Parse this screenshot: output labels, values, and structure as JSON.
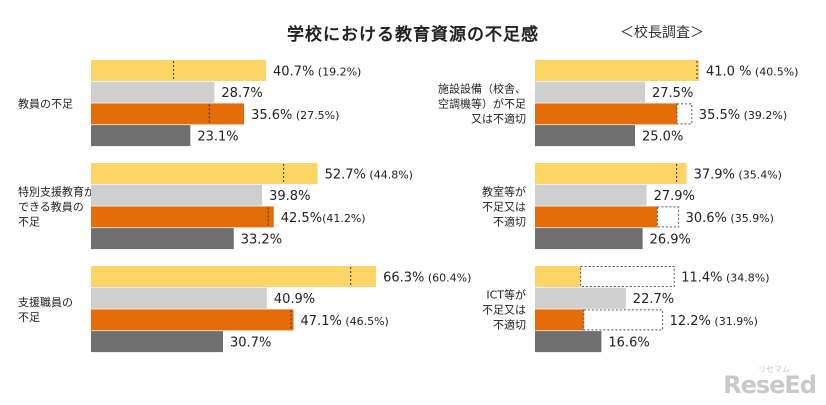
{
  "title": "学校における教育資源の不足感",
  "note": "＜校長調査＞",
  "logo": "ReseEd",
  "logo_sub": "リセマム",
  "colors": {
    "series1": "#fdd565",
    "series2": "#cfcfcf",
    "series3": "#e46d0a",
    "series4": "#6f6f6f"
  },
  "chart_data": {
    "type": "bar",
    "orientation": "horizontal",
    "panels": [
      {
        "label": [
          "教員の不足"
        ],
        "bars": [
          {
            "value": 40.7,
            "compare": 19.2,
            "label": "40.7% (19.2%)"
          },
          {
            "value": 28.7,
            "label": "28.7%"
          },
          {
            "value": 35.6,
            "compare": 27.5,
            "label": "35.6% (27.5%)"
          },
          {
            "value": 23.1,
            "label": "23.1%"
          }
        ]
      },
      {
        "label": [
          "特別支援教育が",
          "できる教員の",
          "不足"
        ],
        "bars": [
          {
            "value": 52.7,
            "compare": 44.8,
            "label": "52.7% (44.8%)"
          },
          {
            "value": 39.8,
            "label": "39.8%"
          },
          {
            "value": 42.5,
            "compare": 41.2,
            "label": "42.5%(41.2%)"
          },
          {
            "value": 33.2,
            "label": "33.2%"
          }
        ]
      },
      {
        "label": [
          "支援職員の",
          "不足"
        ],
        "bars": [
          {
            "value": 66.3,
            "compare": 60.4,
            "label": "66.3% (60.4%)"
          },
          {
            "value": 40.9,
            "label": "40.9%"
          },
          {
            "value": 47.1,
            "compare": 46.5,
            "label": "47.1% (46.5%)"
          },
          {
            "value": 30.7,
            "label": "30.7%"
          }
        ]
      },
      {
        "label": [
          "施設設備（校舎、",
          "空調機等）が不足",
          "又は不適切"
        ],
        "bars": [
          {
            "value": 41.0,
            "compare": 40.5,
            "label": "41.0 % (40.5%)"
          },
          {
            "value": 27.5,
            "label": "27.5%"
          },
          {
            "value": 35.5,
            "compare": 39.2,
            "label": "35.5% (39.2%)"
          },
          {
            "value": 25.0,
            "label": "25.0%"
          }
        ]
      },
      {
        "label": [
          "教室等が",
          "不足又は",
          "不適切"
        ],
        "bars": [
          {
            "value": 37.9,
            "compare": 35.4,
            "label": "37.9% (35.4%)"
          },
          {
            "value": 27.9,
            "label": "27.9%"
          },
          {
            "value": 30.6,
            "compare": 35.9,
            "label": "30.6% (35.9%)"
          },
          {
            "value": 26.9,
            "label": "26.9%"
          }
        ]
      },
      {
        "label": [
          "ICT等が",
          "不足又は",
          "不適切"
        ],
        "bars": [
          {
            "value": 11.4,
            "compare": 34.8,
            "label": "11.4% (34.8%)"
          },
          {
            "value": 22.7,
            "label": "22.7%"
          },
          {
            "value": 12.2,
            "compare": 31.9,
            "label": "12.2% (31.9%)"
          },
          {
            "value": 16.6,
            "label": "16.6%"
          }
        ]
      }
    ],
    "grid": false,
    "legend": "none"
  }
}
